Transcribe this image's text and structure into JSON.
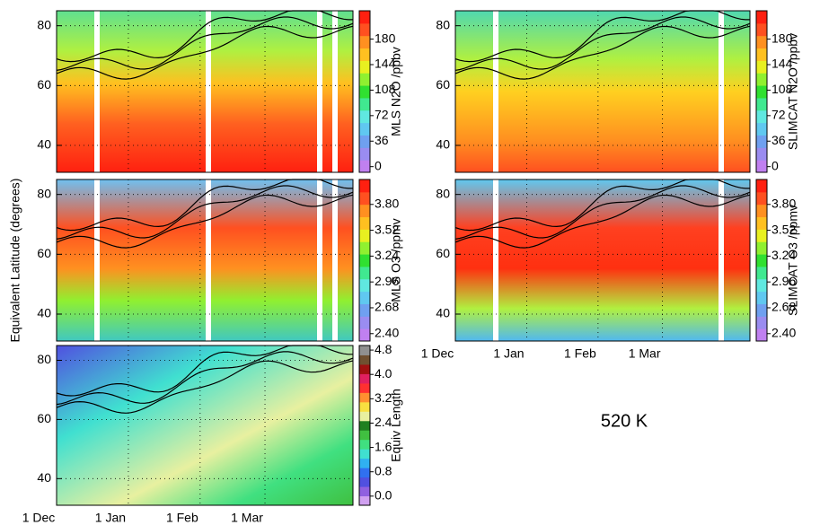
{
  "ylabel": "Equivalent Latitude (degrees)",
  "annotation": "520 K",
  "chart_data": [
    {
      "type": "contour",
      "colorbar_label": "MLS N2O /ppbv",
      "xlim": [
        0,
        128
      ],
      "xticks": [
        0,
        31,
        62,
        90
      ],
      "xlabels": false,
      "ylim": [
        31,
        85
      ],
      "yticks": [
        40,
        60,
        80
      ],
      "clim": [
        -8,
        220
      ],
      "cticks": [
        0,
        36,
        72,
        108,
        144,
        180
      ],
      "colors": [
        "#c080f0",
        "#9a8cf0",
        "#6fa0f0",
        "#60c8f0",
        "#60e8e0",
        "#40e890",
        "#30e030",
        "#90f030",
        "#e8f020",
        "#ffc020",
        "#ff9020",
        "#ff5020",
        "#ff2010"
      ]
    },
    {
      "type": "contour",
      "colorbar_label": "MLS O3 /ppmv",
      "xlim": [
        0,
        128
      ],
      "xticks": [
        0,
        31,
        62,
        90
      ],
      "xlabels": false,
      "ylim": [
        31,
        85
      ],
      "yticks": [
        40,
        60,
        80
      ],
      "clim": [
        2.32,
        4.07
      ],
      "cticks": [
        {
          "value": 2.4,
          "label": "2.40"
        },
        {
          "value": 2.68,
          "label": "2.68"
        },
        {
          "value": 2.96,
          "label": "2.96"
        },
        {
          "value": 3.24,
          "label": "3.24"
        },
        {
          "value": 3.52,
          "label": "3.52"
        },
        {
          "value": 3.8,
          "label": "3.80"
        }
      ],
      "colors": [
        "#c080f0",
        "#9a8cf0",
        "#6fa0f0",
        "#60c8f0",
        "#60e8e0",
        "#40e890",
        "#30e030",
        "#90f030",
        "#e8f020",
        "#ffc020",
        "#ff9020",
        "#ff5020",
        "#ff2010"
      ]
    },
    {
      "type": "contour",
      "colorbar_label": "Equiv Length",
      "xlim": [
        0,
        128
      ],
      "xticks": [
        {
          "value": 0,
          "label": "1 Dec"
        },
        {
          "value": 31,
          "label": "1 Jan"
        },
        {
          "value": 62,
          "label": "1 Feb"
        },
        {
          "value": 90,
          "label": "1 Mar"
        }
      ],
      "ylim": [
        31,
        85
      ],
      "yticks": [
        40,
        60,
        80
      ],
      "clim": [
        -0.3,
        4.95
      ],
      "cticks": [
        {
          "value": 0,
          "label": "0.0"
        },
        {
          "value": 0.8,
          "label": "0.8"
        },
        {
          "value": 1.6,
          "label": "1.6"
        },
        {
          "value": 2.4,
          "label": "2.4"
        },
        {
          "value": 3.2,
          "label": "3.2"
        },
        {
          "value": 4,
          "label": "4.0"
        },
        {
          "value": 4.8,
          "label": "4.8"
        }
      ],
      "colors": [
        "#d0a0f0",
        "#9060e0",
        "#5050e0",
        "#3070f0",
        "#30b0f0",
        "#40e0d0",
        "#40e080",
        "#40c040",
        "#208020",
        "#e8f0a0",
        "#f8e040",
        "#ff9030",
        "#ff3030",
        "#e02060",
        "#a01010",
        "#705030",
        "#909090"
      ]
    },
    {
      "type": "contour",
      "colorbar_label": "SLIMCAT N2O /ppbv",
      "xlim": [
        0,
        128
      ],
      "xticks": [
        0,
        31,
        62,
        90
      ],
      "xlabels": false,
      "ylim": [
        31,
        85
      ],
      "yticks": [
        40,
        60,
        80
      ],
      "clim": [
        -8,
        220
      ],
      "cticks": [
        0,
        36,
        72,
        108,
        144,
        180
      ],
      "colors": [
        "#c080f0",
        "#9a8cf0",
        "#6fa0f0",
        "#60c8f0",
        "#60e8e0",
        "#40e890",
        "#30e030",
        "#90f030",
        "#e8f020",
        "#ffc020",
        "#ff9020",
        "#ff5020",
        "#ff2010"
      ]
    },
    {
      "type": "contour",
      "colorbar_label": "SLIMCAT O3 /ppmv",
      "xlim": [
        0,
        128
      ],
      "xticks": [
        {
          "value": 0,
          "label": "1 Dec"
        },
        {
          "value": 31,
          "label": "1 Jan"
        },
        {
          "value": 62,
          "label": "1 Feb"
        },
        {
          "value": 90,
          "label": "1 Mar"
        }
      ],
      "ylim": [
        31,
        85
      ],
      "yticks": [
        40,
        60,
        80
      ],
      "clim": [
        2.32,
        4.07
      ],
      "cticks": [
        {
          "value": 2.4,
          "label": "2.40"
        },
        {
          "value": 2.68,
          "label": "2.68"
        },
        {
          "value": 2.96,
          "label": "2.96"
        },
        {
          "value": 3.24,
          "label": "3.24"
        },
        {
          "value": 3.52,
          "label": "3.52"
        },
        {
          "value": 3.8,
          "label": "3.80"
        }
      ],
      "colors": [
        "#c080f0",
        "#9a8cf0",
        "#6fa0f0",
        "#60c8f0",
        "#60e8e0",
        "#40e890",
        "#30e030",
        "#90f030",
        "#e8f020",
        "#ffc020",
        "#ff9020",
        "#ff5020",
        "#ff2010"
      ]
    }
  ]
}
